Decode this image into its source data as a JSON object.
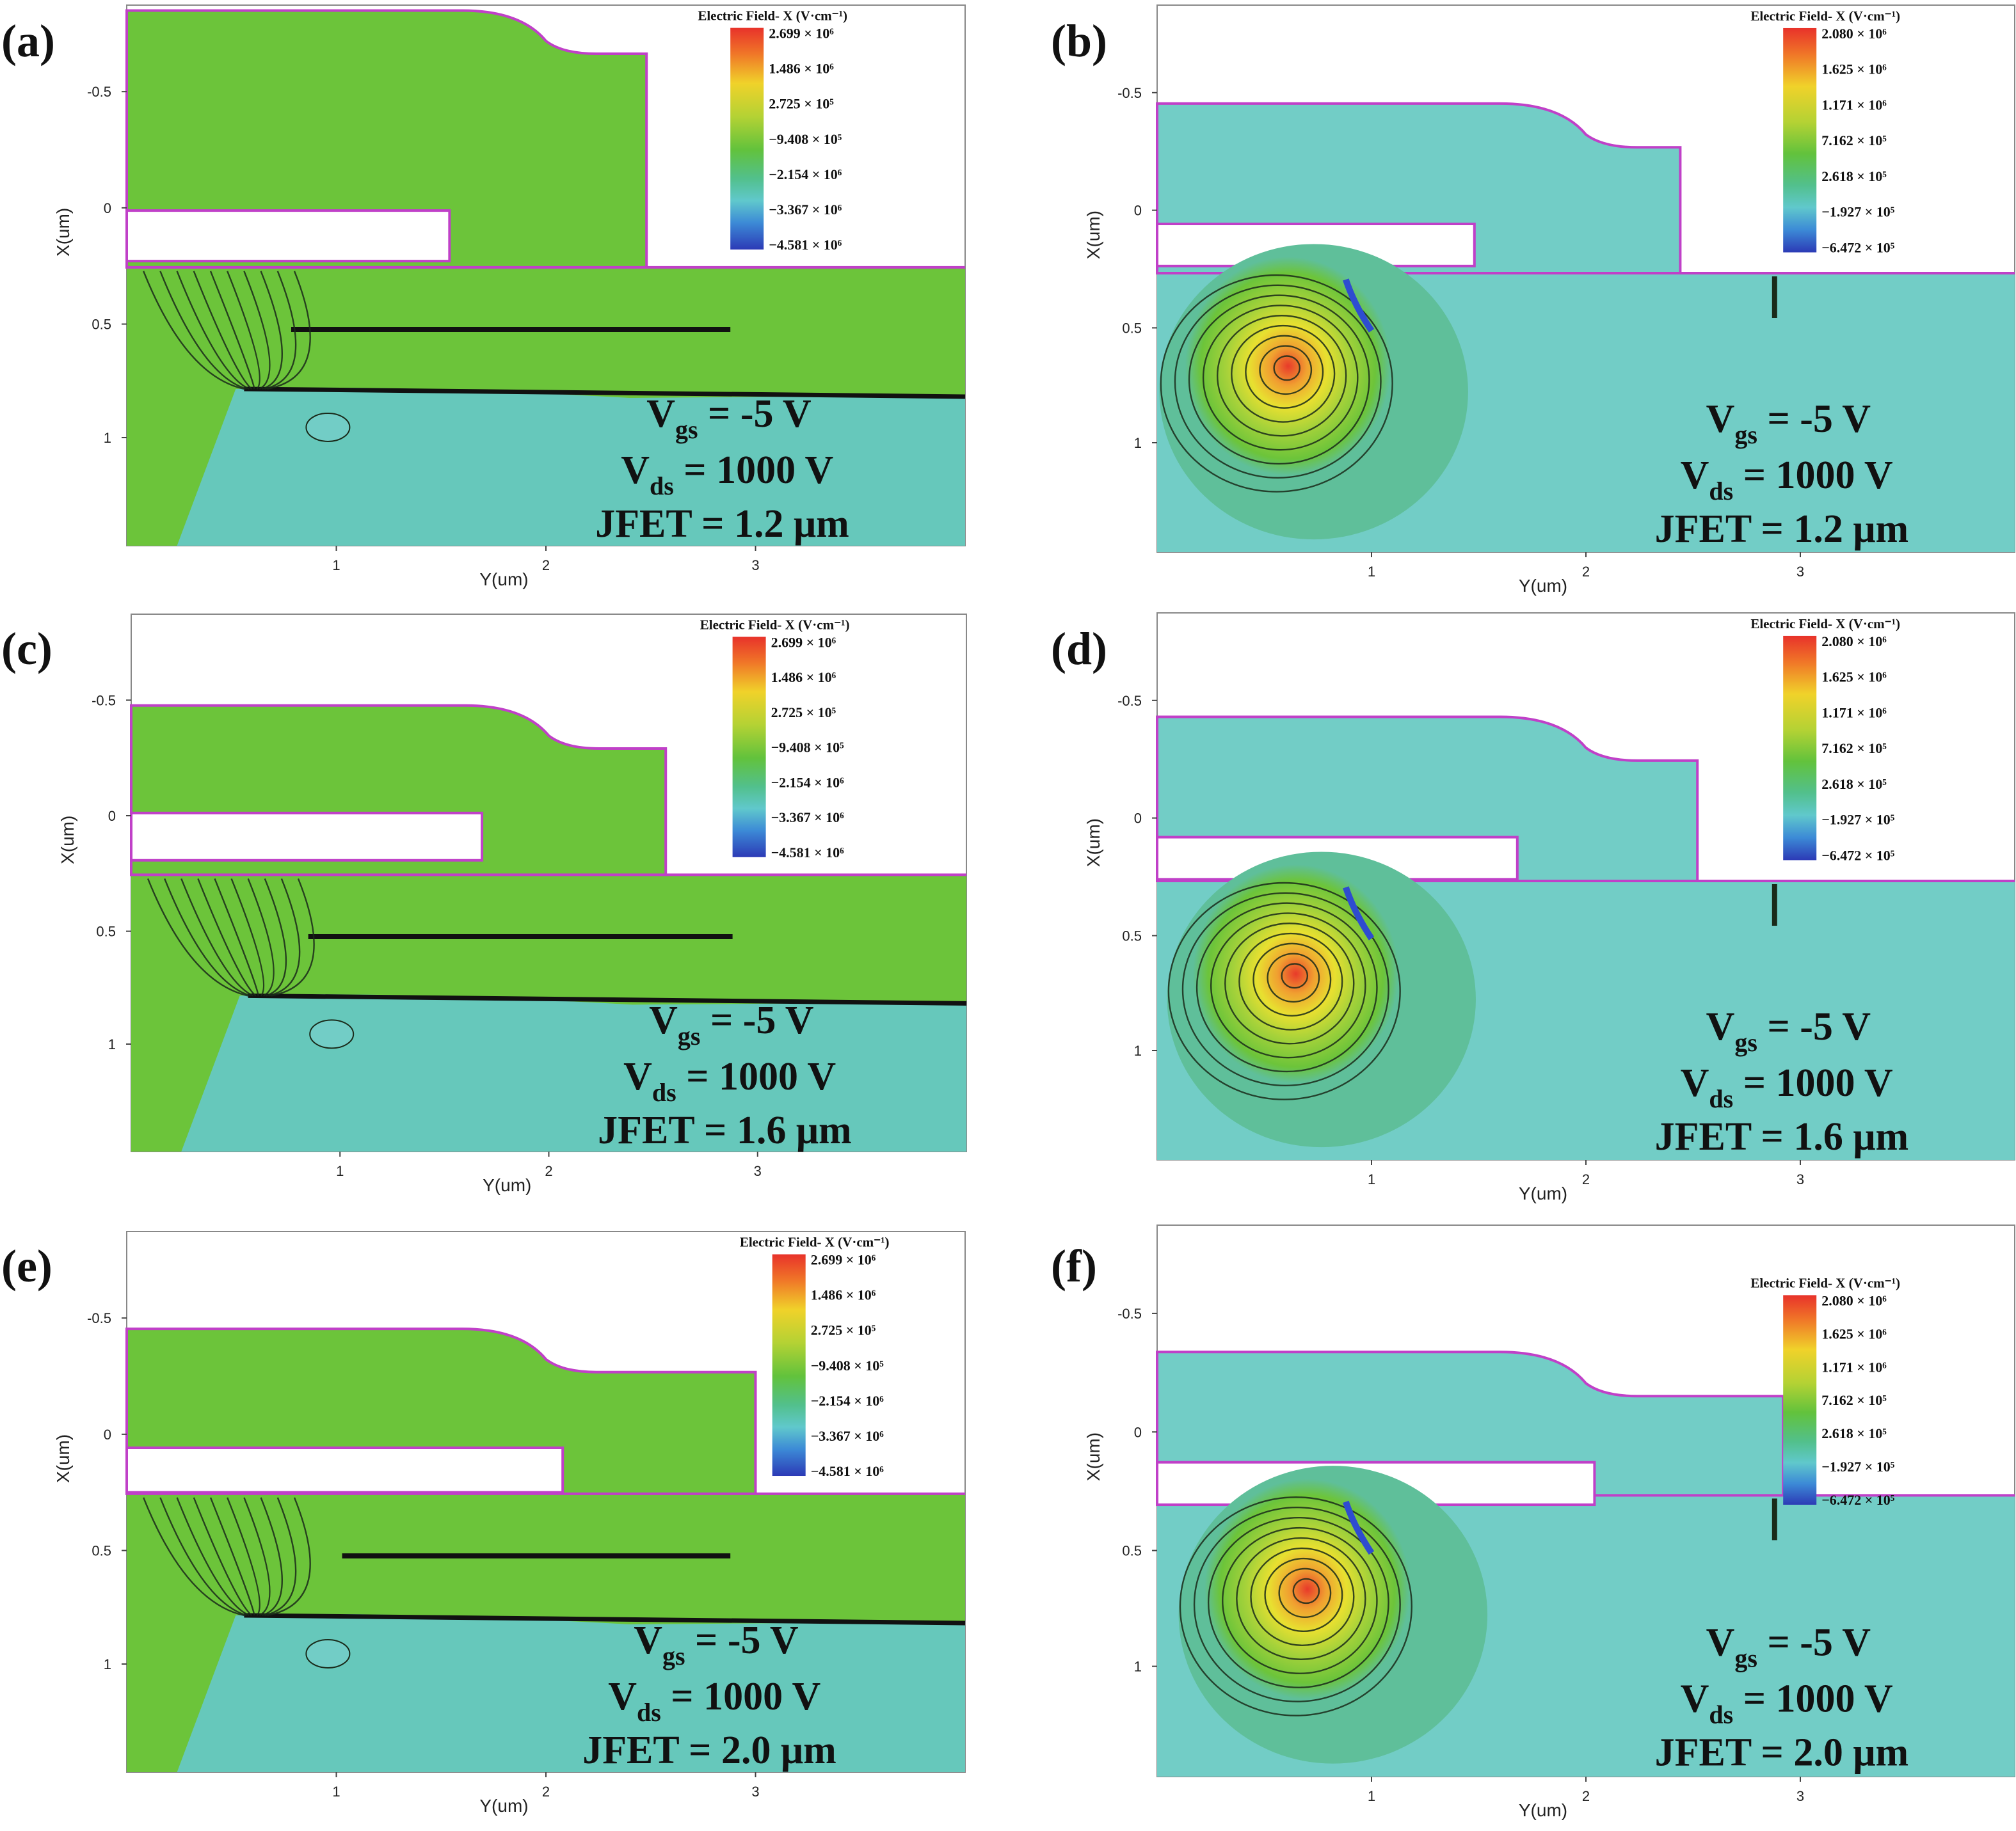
{
  "colors": {
    "green": "#6cc43a",
    "cyan": "#72cdc6",
    "cyan_mid": "#66c8bb",
    "cyan_green": "#5fbf9a",
    "outline_magenta": "#c040c8",
    "contour": "#1a2a1a"
  },
  "axes": {
    "xlabel": "Y(um)",
    "ylabel": "X(um)",
    "x_ticks": [
      "1",
      "2",
      "3"
    ],
    "y_ticks": [
      "-0.5",
      "0",
      "0.5",
      "1"
    ]
  },
  "colorbar_sets": {
    "A": {
      "title": "Electric Field- X (V·cm⁻¹)",
      "labels": [
        "2.699 × 10⁶",
        "1.486 × 10⁶",
        "2.725 × 10⁵",
        "−9.408 × 10⁵",
        "−2.154 × 10⁶",
        "−3.367 × 10⁶",
        "−4.581 × 10⁶"
      ]
    },
    "B": {
      "title": "Electric Field- X (V·cm⁻¹)",
      "labels": [
        "2.080 × 10⁶",
        "1.625 × 10⁶",
        "1.171 × 10⁶",
        "7.162 × 10⁵",
        "2.618 × 10⁵",
        "−1.927 × 10⁵",
        "−6.472 × 10⁵"
      ]
    }
  },
  "panels": [
    {
      "label": "(a)",
      "field": "green",
      "cbset": "A",
      "vgs_prefix": "V",
      "vgs_sub": "gs",
      "vgs_value": " = -5 V",
      "vds_prefix": "V",
      "vds_sub": "ds",
      "vds_value": " = 1000 V",
      "jfet": "JFET = 1.2 μm"
    },
    {
      "label": "(b)",
      "field": "cyan",
      "cbset": "B",
      "vgs_prefix": "V",
      "vgs_sub": "gs",
      "vgs_value": " = -5 V",
      "vds_prefix": "V",
      "vds_sub": "ds",
      "vds_value": " = 1000 V",
      "jfet": "JFET = 1.2 μm"
    },
    {
      "label": "(c)",
      "field": "green",
      "cbset": "A",
      "vgs_prefix": "V",
      "vgs_sub": "gs",
      "vgs_value": " = -5 V",
      "vds_prefix": "V",
      "vds_sub": "ds",
      "vds_value": " = 1000 V",
      "jfet": "JFET = 1.6 μm"
    },
    {
      "label": "(d)",
      "field": "cyan",
      "cbset": "B",
      "vgs_prefix": "V",
      "vgs_sub": "gs",
      "vgs_value": " = -5 V",
      "vds_prefix": "V",
      "vds_sub": "ds",
      "vds_value": " = 1000 V",
      "jfet": "JFET = 1.6 μm"
    },
    {
      "label": "(e)",
      "field": "green",
      "cbset": "A",
      "vgs_prefix": "V",
      "vgs_sub": "gs",
      "vgs_value": " = -5 V",
      "vds_prefix": "V",
      "vds_sub": "ds",
      "vds_value": " = 1000 V",
      "jfet": "JFET = 2.0 μm"
    },
    {
      "label": "(f)",
      "field": "cyan",
      "cbset": "B",
      "vgs_prefix": "V",
      "vgs_sub": "gs",
      "vgs_value": " = -5 V",
      "vds_prefix": "V",
      "vds_sub": "ds",
      "vds_value": " = 1000 V",
      "jfet": "JFET = 2.0 μm"
    }
  ]
}
